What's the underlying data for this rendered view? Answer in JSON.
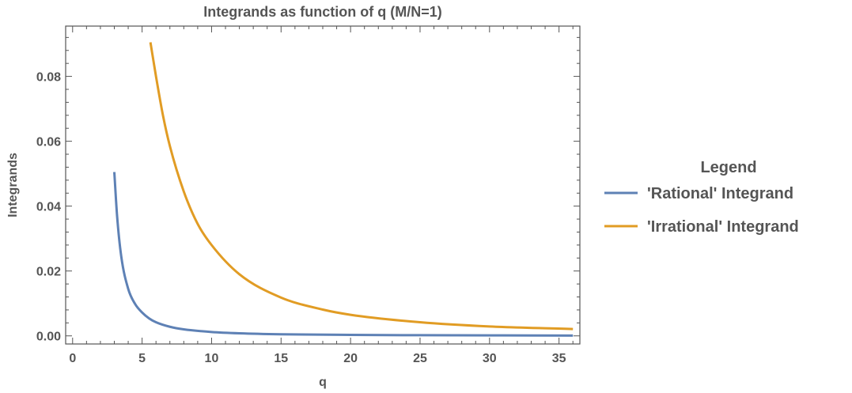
{
  "chart_data": {
    "type": "line",
    "title": "Integrands as function of q   (M/N=1)",
    "xlabel": "q",
    "ylabel": "Integrands",
    "xlim": [
      -0.5,
      36.5
    ],
    "ylim": [
      -0.0025,
      0.0955
    ],
    "x_ticks": [
      0,
      5,
      10,
      15,
      20,
      25,
      30,
      35
    ],
    "y_ticks": [
      0.0,
      0.02,
      0.04,
      0.06,
      0.08
    ],
    "x_tick_labels": [
      "0",
      "5",
      "10",
      "15",
      "20",
      "25",
      "30",
      "35"
    ],
    "y_tick_labels": [
      "0.00",
      "0.02",
      "0.04",
      "0.06",
      "0.08"
    ],
    "grid": false,
    "legend_placement": "right",
    "legend_title": "Legend",
    "series": [
      {
        "name": "'Rational' Integrand",
        "color": "#5e81b5",
        "x": [
          3.0,
          3.2,
          3.5,
          4.0,
          4.5,
          5.0,
          5.5,
          6.0,
          7.0,
          8.0,
          10.0,
          12.0,
          15.0,
          20.0,
          25.0,
          30.0,
          36.0
        ],
        "y": [
          0.0505,
          0.037,
          0.0245,
          0.0145,
          0.0098,
          0.0072,
          0.0054,
          0.0042,
          0.0028,
          0.002,
          0.0012,
          0.0008,
          0.0005,
          0.0003,
          0.0002,
          0.00015,
          0.0001
        ]
      },
      {
        "name": "'Irrational' Integrand",
        "color": "#e19c24",
        "x": [
          5.6,
          6.0,
          6.5,
          7.0,
          8.0,
          9.0,
          10.0,
          12.0,
          15.0,
          18.0,
          20.0,
          25.0,
          30.0,
          36.0
        ],
        "y": [
          0.0905,
          0.08,
          0.068,
          0.0585,
          0.0445,
          0.0345,
          0.028,
          0.019,
          0.0118,
          0.0081,
          0.0065,
          0.0042,
          0.0029,
          0.0021
        ]
      }
    ]
  }
}
